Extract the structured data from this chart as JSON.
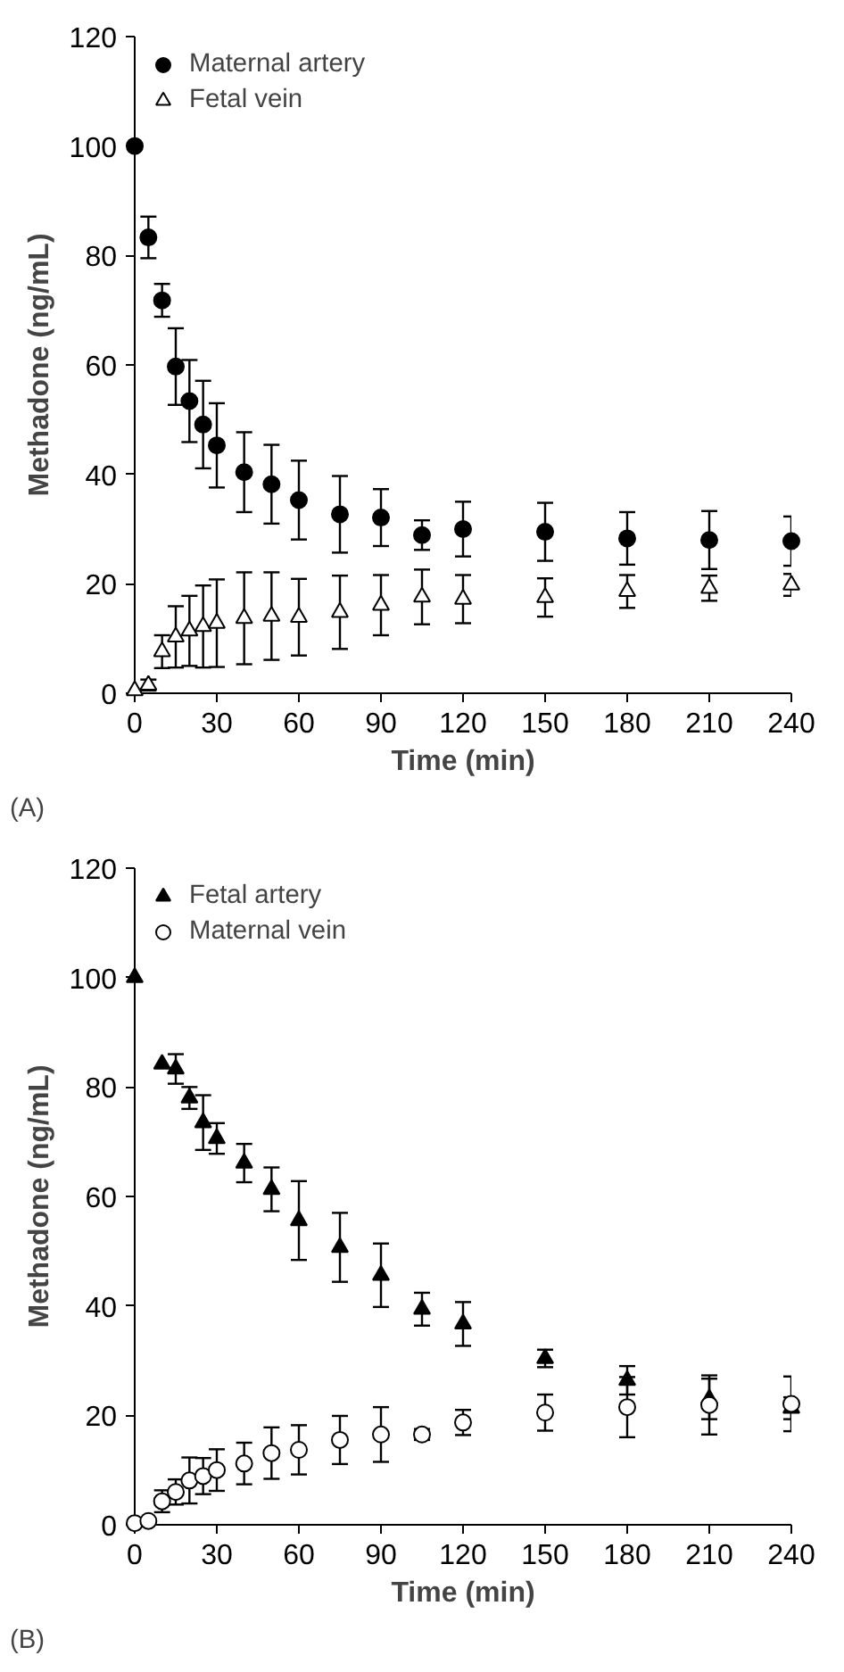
{
  "chart_data": [
    {
      "type": "scatter",
      "xlabel": "Time (min)",
      "ylabel": "Methadone (ng/mL)",
      "annotations": [
        "(A)"
      ],
      "x": [
        0,
        5,
        10,
        15,
        20,
        25,
        30,
        40,
        50,
        60,
        75,
        90,
        105,
        120,
        150,
        180,
        210,
        240
      ],
      "xlim": [
        0,
        240
      ],
      "xticks": [
        0,
        30,
        60,
        90,
        120,
        150,
        180,
        210,
        240
      ],
      "ylim": [
        0,
        120
      ],
      "yticks": [
        0,
        20,
        40,
        60,
        80,
        100,
        120
      ],
      "grid": false,
      "legend": "top left",
      "series": [
        {
          "name": "Maternal artery",
          "color": "#000000",
          "marker": "circle",
          "values": [
            100,
            83.3,
            71.8,
            59.7,
            53.4,
            49.1,
            45.3,
            40.4,
            38.2,
            35.3,
            32.7,
            32.1,
            28.9,
            30,
            29.5,
            28.3,
            28,
            27.8
          ],
          "errors": [
            null,
            3.8,
            3,
            7,
            7.5,
            8,
            7.7,
            7.3,
            7.2,
            7.2,
            7,
            5.2,
            2.7,
            5,
            5.3,
            4.8,
            5.3,
            4.5
          ]
        },
        {
          "name": "Fetal vein",
          "color": "#ffffff",
          "marker": "triangle",
          "values": [
            0.5,
            1.5,
            7.6,
            10.3,
            11.4,
            12.2,
            12.8,
            13.7,
            14.1,
            13.9,
            14.8,
            16.1,
            17.6,
            17.2,
            17.5,
            18.6,
            19.2,
            19.8
          ],
          "errors": [
            null,
            1,
            3,
            5.6,
            6.4,
            7.5,
            8,
            8.4,
            8,
            7,
            6.7,
            5.5,
            5,
            4.4,
            3.5,
            3,
            2.3,
            2
          ]
        }
      ]
    },
    {
      "type": "scatter",
      "xlabel": "Time (min)",
      "ylabel": "Methadone (ng/mL)",
      "annotations": [
        "(B)"
      ],
      "x": [
        0,
        5,
        10,
        15,
        20,
        25,
        30,
        40,
        50,
        60,
        75,
        90,
        105,
        120,
        150,
        180,
        210,
        240
      ],
      "xlim": [
        0,
        240
      ],
      "xticks": [
        0,
        30,
        60,
        90,
        120,
        150,
        180,
        210,
        240
      ],
      "ylim": [
        0,
        120
      ],
      "yticks": [
        0,
        20,
        40,
        60,
        80,
        100,
        120
      ],
      "grid": false,
      "legend": "top left",
      "series": [
        {
          "name": "Fetal artery",
          "color": "#000000",
          "marker": "triangle",
          "values": [
            100,
            null,
            84.2,
            83.3,
            78,
            73.5,
            70.6,
            66.1,
            61.3,
            55.6,
            50.7,
            45.6,
            39.4,
            36.7,
            30.4,
            26.4,
            23,
            21.3
          ],
          "errors": [
            null,
            null,
            null,
            2.7,
            2,
            5,
            2.8,
            3.5,
            4,
            7.2,
            6.3,
            5.8,
            3,
            4,
            1.6,
            2.6,
            3.7,
            2
          ]
        },
        {
          "name": "Maternal vein",
          "color": "#ffffff",
          "marker": "circle",
          "values": [
            0.3,
            0.7,
            4.3,
            6,
            8.1,
            8.9,
            10,
            11.2,
            13.1,
            13.7,
            15.5,
            16.5,
            16.5,
            18.7,
            20.5,
            21.5,
            21.9,
            22.1
          ],
          "errors": [
            null,
            null,
            2,
            2.3,
            4.2,
            3.3,
            3.8,
            3.8,
            4.7,
            4.5,
            4.4,
            5,
            1,
            2.3,
            3.3,
            5.5,
            5.4,
            5
          ]
        }
      ]
    }
  ]
}
